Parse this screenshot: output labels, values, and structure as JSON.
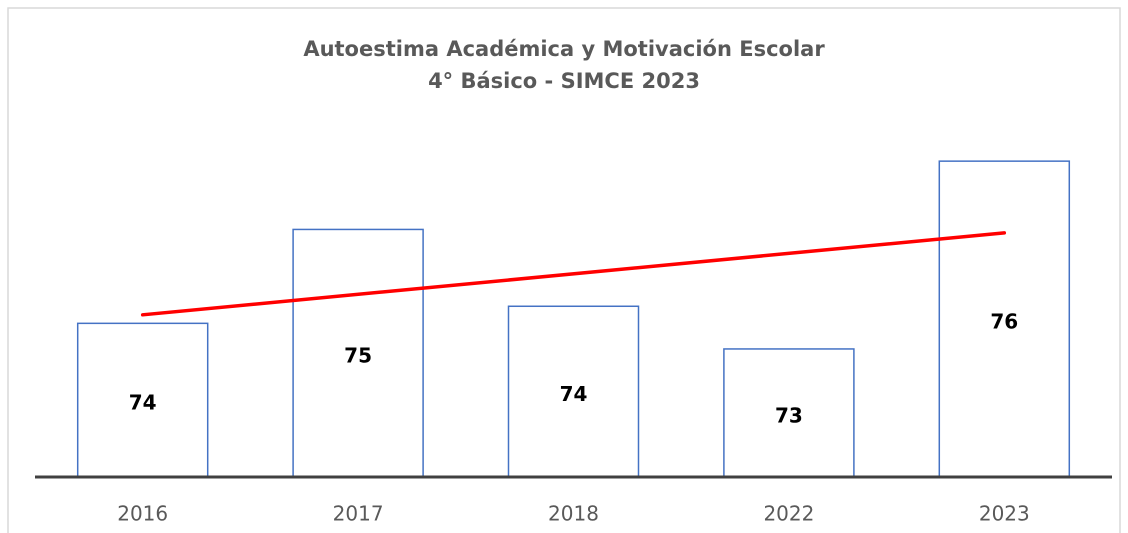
{
  "chart_data": {
    "type": "bar",
    "title": "Autoestima Académica y Motivación Escolar",
    "subtitle": "4° Básico - SIMCE 2023",
    "categories": [
      "2016",
      "2017",
      "2018",
      "2022",
      "2023"
    ],
    "values": [
      73.7,
      74.8,
      73.9,
      73.4,
      75.6
    ],
    "value_labels": [
      "74",
      "75",
      "74",
      "73",
      "76"
    ],
    "color": "#4472c4",
    "ylim": [
      71.9,
      76
    ],
    "trendline": true,
    "trendline_color": "#ff0000"
  }
}
